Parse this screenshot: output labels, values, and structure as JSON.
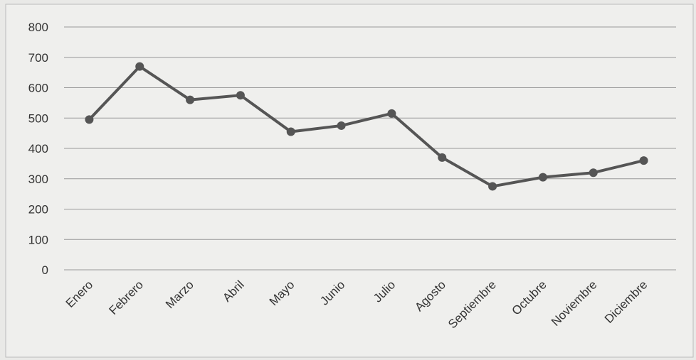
{
  "chart_data": {
    "type": "line",
    "categories": [
      "Enero",
      "Febrero",
      "Marzo",
      "Abril",
      "Mayo",
      "Junio",
      "Julio",
      "Agosto",
      "Septiembre",
      "Octubre",
      "Noviembre",
      "Diciembre"
    ],
    "series": [
      {
        "color": "#555555",
        "values": [
          495,
          670,
          560,
          575,
          455,
          475,
          515,
          370,
          275,
          305,
          320,
          360
        ]
      }
    ],
    "ylim": [
      0,
      800
    ],
    "yticks": [
      0,
      100,
      200,
      300,
      400,
      500,
      600,
      700,
      800
    ],
    "grid": true
  }
}
